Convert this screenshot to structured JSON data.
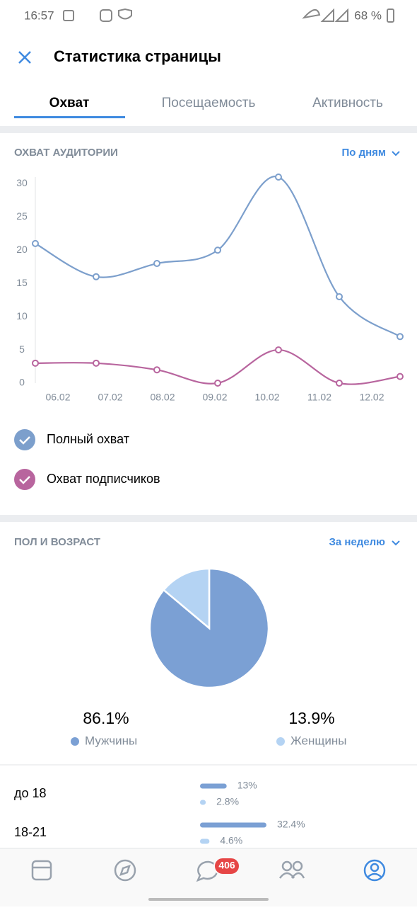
{
  "status_bar": {
    "time": "16:57",
    "battery": "68 %"
  },
  "header": {
    "title": "Статистика страницы"
  },
  "tabs": [
    "Охват",
    "Посещаемость",
    "Активность"
  ],
  "reach_section": {
    "title": "ОХВАТ АУДИТОРИИ",
    "period": "По дням"
  },
  "gender_section": {
    "title": "ПОЛ И ВОЗРАСТ",
    "period": "За неделю"
  },
  "nav": {
    "messages_badge": "406"
  },
  "chart_data": [
    {
      "type": "line",
      "categories": [
        "06.02",
        "07.02",
        "08.02",
        "09.02",
        "10.02",
        "11.02",
        "12.02"
      ],
      "series": [
        {
          "name": "Полный охват",
          "color": "#7c9fcc",
          "values": [
            21,
            16,
            18,
            20,
            31,
            13,
            7
          ]
        },
        {
          "name": "Охват подписчиков",
          "color": "#b8659e",
          "values": [
            3,
            3,
            2,
            0,
            5,
            0,
            1
          ]
        }
      ],
      "ylim": [
        0,
        31
      ],
      "yticks": [
        0,
        5,
        10,
        15,
        20,
        25,
        30
      ],
      "grid": false
    },
    {
      "type": "pie",
      "categories": [
        "Мужчины",
        "Женщины"
      ],
      "values": [
        86.1,
        13.9
      ],
      "value_labels": [
        "86.1%",
        "13.9%"
      ],
      "colors": [
        "#7ba0d4",
        "#b4d3f3"
      ]
    },
    {
      "type": "hbar",
      "categories": [
        "до 18",
        "18-21"
      ],
      "series": [
        {
          "name": "Мужчины",
          "color": "#7ba0d4",
          "values": [
            13,
            32.4
          ],
          "value_labels": [
            "13%",
            "32.4%"
          ]
        },
        {
          "name": "Женщины",
          "color": "#b4d3f3",
          "values": [
            2.8,
            4.6
          ],
          "value_labels": [
            "2.8%",
            "4.6%"
          ]
        }
      ]
    }
  ]
}
